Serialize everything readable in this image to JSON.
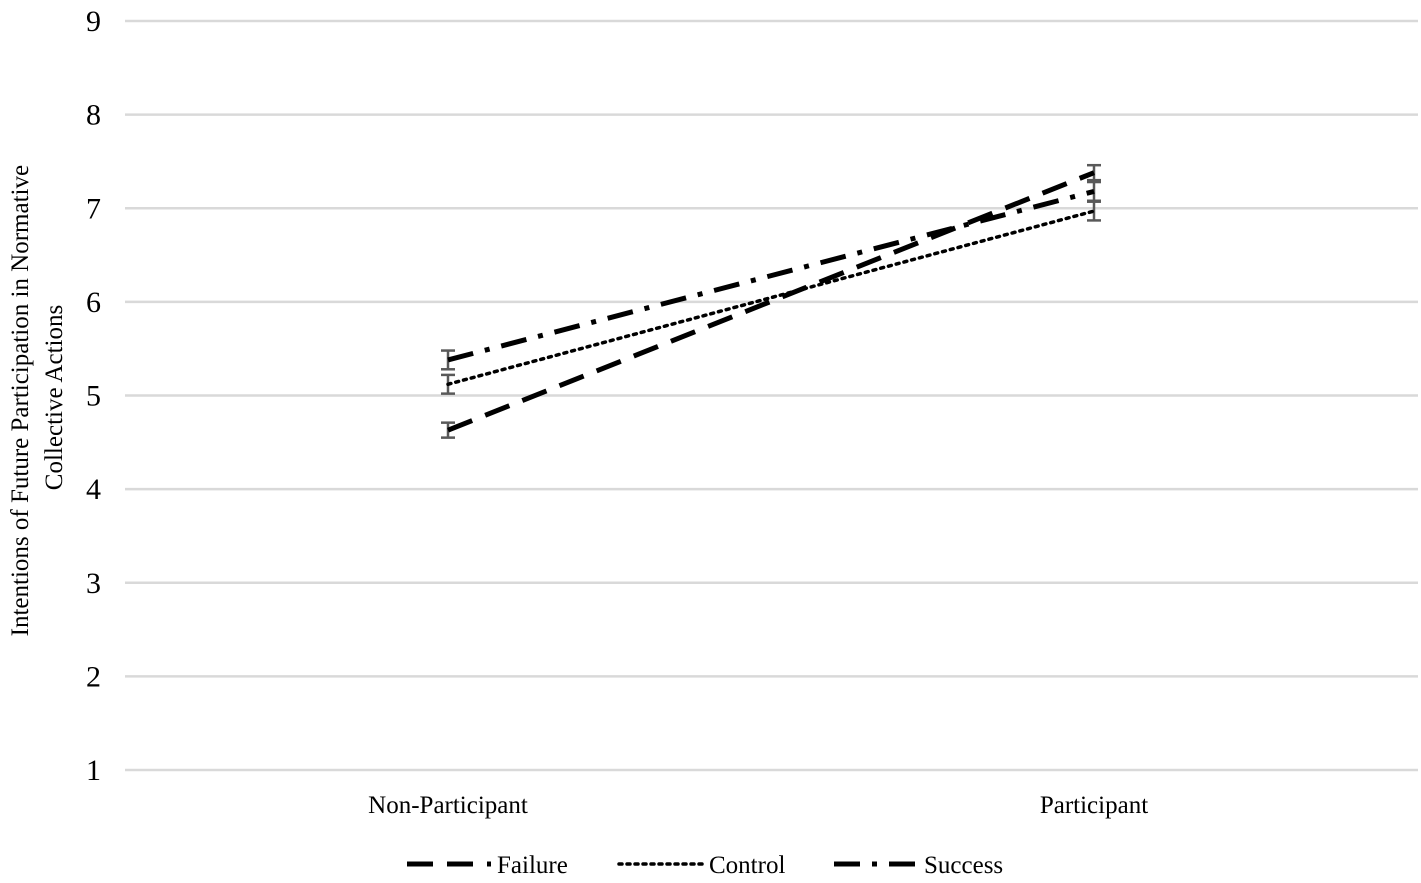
{
  "chart_data": {
    "type": "line",
    "title": "",
    "xlabel": "",
    "ylabel_lines": [
      "Intentions of Future Participation in Normative",
      "Collective Actions"
    ],
    "categories": [
      "Non-Participant",
      "Participant"
    ],
    "ylim": [
      1,
      9
    ],
    "yticks": [
      1,
      2,
      3,
      4,
      5,
      6,
      7,
      8,
      9
    ],
    "grid": true,
    "legend_position": "bottom",
    "series": [
      {
        "name": "Failure",
        "dash_style": "dashed",
        "color": "#000000",
        "values": [
          4.63,
          7.38
        ],
        "error": [
          0.08,
          0.08
        ]
      },
      {
        "name": "Control",
        "dash_style": "dotted",
        "color": "#000000",
        "values": [
          5.12,
          6.97
        ],
        "error": [
          0.1,
          0.1
        ]
      },
      {
        "name": "Success",
        "dash_style": "dash-dot",
        "color": "#000000",
        "values": [
          5.38,
          7.18
        ],
        "error": [
          0.1,
          0.1
        ]
      }
    ]
  }
}
